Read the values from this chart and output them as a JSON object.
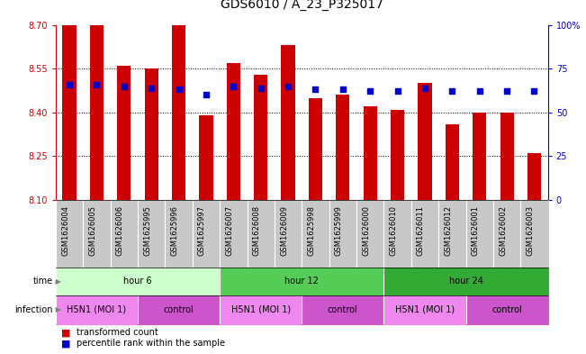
{
  "title": "GDS6010 / A_23_P325017",
  "samples": [
    "GSM1626004",
    "GSM1626005",
    "GSM1626006",
    "GSM1625995",
    "GSM1625996",
    "GSM1625997",
    "GSM1626007",
    "GSM1626008",
    "GSM1626009",
    "GSM1625998",
    "GSM1625999",
    "GSM1626000",
    "GSM1626010",
    "GSM1626011",
    "GSM1626012",
    "GSM1626001",
    "GSM1626002",
    "GSM1626003"
  ],
  "bar_values": [
    8.7,
    8.7,
    8.56,
    8.55,
    8.7,
    8.39,
    8.57,
    8.53,
    8.63,
    8.45,
    8.46,
    8.42,
    8.41,
    8.5,
    8.36,
    8.4,
    8.4,
    8.26
  ],
  "dot_values": [
    66,
    66,
    65,
    64,
    63,
    60,
    65,
    64,
    65,
    63,
    63,
    62,
    62,
    64,
    62,
    62,
    62,
    62
  ],
  "ylim_left": [
    8.1,
    8.7
  ],
  "ylim_right": [
    0,
    100
  ],
  "yticks_left": [
    8.1,
    8.25,
    8.4,
    8.55,
    8.7
  ],
  "yticks_right": [
    0,
    25,
    50,
    75,
    100
  ],
  "ytick_labels_right": [
    "0",
    "25",
    "50",
    "75",
    "100%"
  ],
  "grid_values": [
    8.25,
    8.4,
    8.55
  ],
  "bar_color": "#cc0000",
  "dot_color": "#0000cc",
  "background_color": "#ffffff",
  "time_groups": [
    {
      "label": "hour 6",
      "start": 0,
      "end": 6,
      "color": "#ccffcc"
    },
    {
      "label": "hour 12",
      "start": 6,
      "end": 12,
      "color": "#55cc55"
    },
    {
      "label": "hour 24",
      "start": 12,
      "end": 18,
      "color": "#33aa33"
    }
  ],
  "infection_groups": [
    {
      "label": "H5N1 (MOI 1)",
      "start": 0,
      "end": 3,
      "color": "#ee88ee"
    },
    {
      "label": "control",
      "start": 3,
      "end": 6,
      "color": "#cc55cc"
    },
    {
      "label": "H5N1 (MOI 1)",
      "start": 6,
      "end": 9,
      "color": "#ee88ee"
    },
    {
      "label": "control",
      "start": 9,
      "end": 12,
      "color": "#cc55cc"
    },
    {
      "label": "H5N1 (MOI 1)",
      "start": 12,
      "end": 15,
      "color": "#ee88ee"
    },
    {
      "label": "control",
      "start": 15,
      "end": 18,
      "color": "#cc55cc"
    }
  ],
  "left_axis_color": "#cc0000",
  "right_axis_color": "#0000cc",
  "title_fontsize": 10,
  "tick_fontsize": 7,
  "sample_label_fontsize": 6,
  "row_label_fontsize": 7,
  "legend_fontsize": 7,
  "cell_label_fontsize": 7
}
